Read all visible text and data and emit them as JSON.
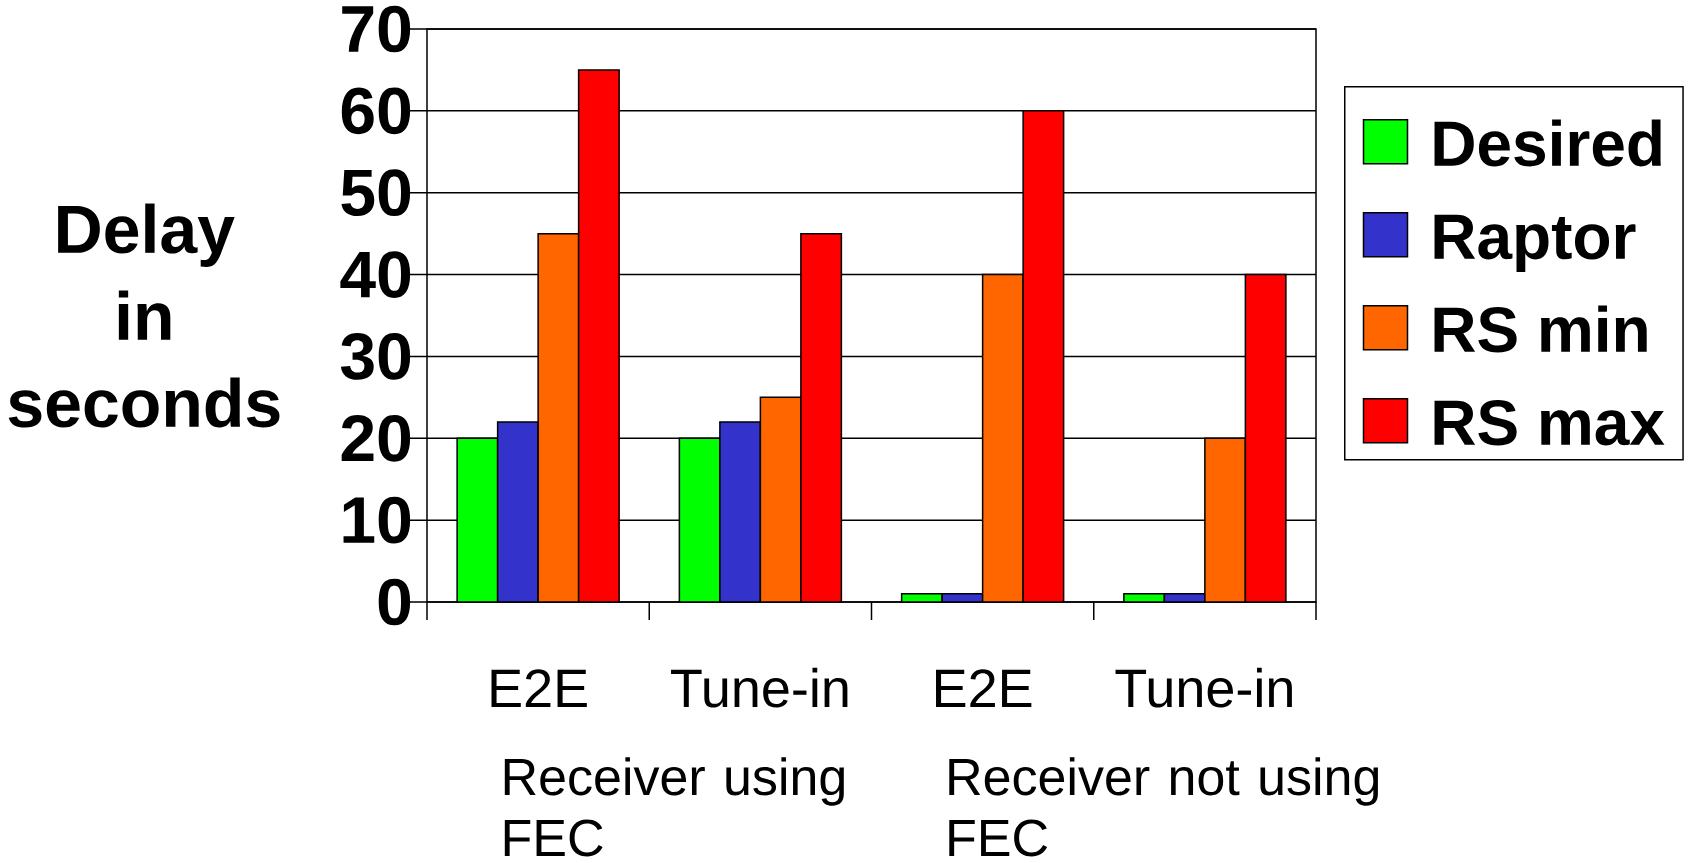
{
  "chart_data": {
    "type": "bar",
    "ylabel": "Delay in seconds",
    "categories": [
      "E2E",
      "Tune-in",
      "E2E",
      "Tune-in"
    ],
    "series": [
      {
        "name": "Desired",
        "color": "#00ff00",
        "values": [
          20,
          20,
          1,
          1
        ]
      },
      {
        "name": "Raptor",
        "color": "#3333cc",
        "values": [
          22,
          22,
          1,
          1
        ]
      },
      {
        "name": "RS min",
        "color": "#ff6600",
        "values": [
          45,
          25,
          40,
          20
        ]
      },
      {
        "name": "RS max",
        "color": "#ff0000",
        "values": [
          65,
          45,
          60,
          40
        ]
      }
    ],
    "ylim": [
      0,
      70
    ],
    "yticks": [
      0,
      10,
      20,
      30,
      40,
      50,
      60,
      70
    ],
    "grid": "y",
    "legend": "right",
    "annotations": [
      "Receiver using FEC",
      "Receiver not using FEC"
    ]
  }
}
